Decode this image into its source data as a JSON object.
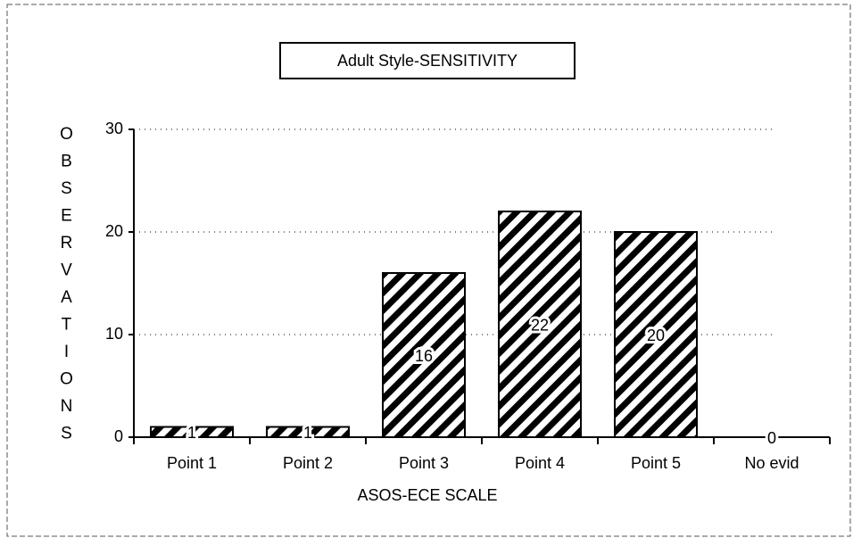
{
  "chart_data": {
    "type": "bar",
    "title": "Adult Style-SENSITIVITY",
    "x_label": "ASOS-ECE SCALE",
    "y_label": "OBSERVATIONS",
    "categories": [
      "Point 1",
      "Point 2",
      "Point 3",
      "Point 4",
      "Point 5",
      "No evid"
    ],
    "values": [
      1,
      1,
      16,
      22,
      20,
      0
    ],
    "color": "#000000",
    "ylim": [
      0,
      30
    ],
    "yticks": [
      0,
      10,
      20,
      30
    ],
    "grid": true
  }
}
